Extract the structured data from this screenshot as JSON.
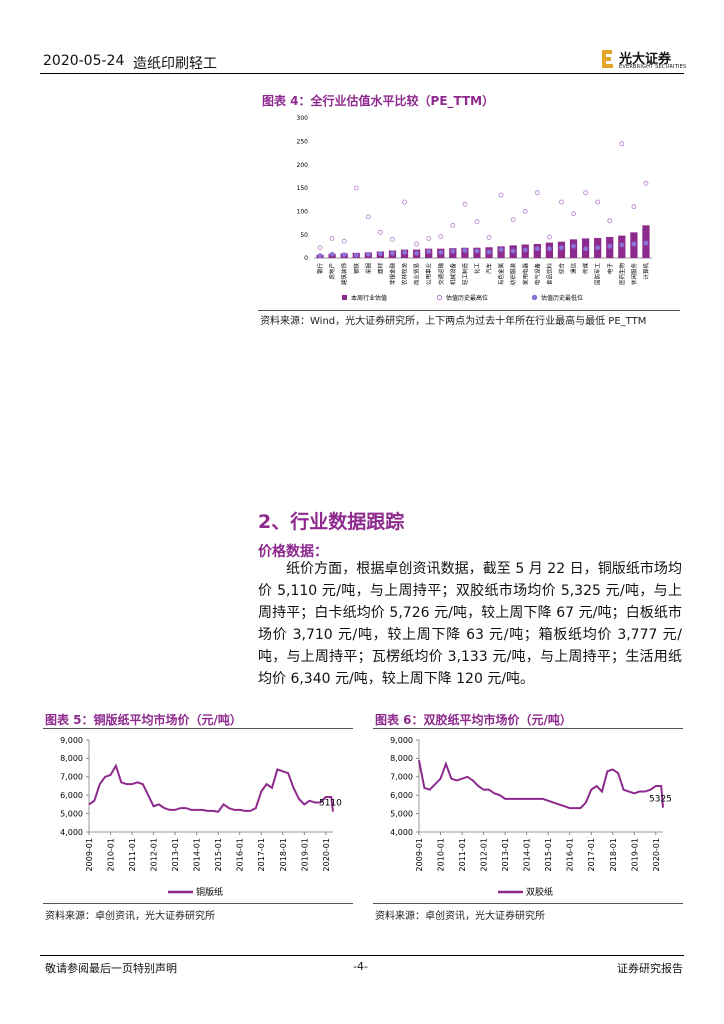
{
  "header": {
    "date": "2020-05-24",
    "section": "造纸印刷轻工",
    "logo_cn": "光大证券",
    "logo_en": "EVERBRIGHT SECURITIES"
  },
  "chart_data": [
    {
      "type": "bar",
      "title": "图表 4：全行业估值水平比较（PE_TTM）",
      "source": "资料来源：Wind，光大证券研究所，上下两点为过去十年所在行业最高与最低 PE_TTM",
      "categories": [
        "银行",
        "房地产",
        "建筑装饰",
        "钢铁",
        "采掘",
        "建材",
        "非银金融",
        "农林牧渔",
        "商业贸易",
        "公用事业",
        "交通运输",
        "机械设备",
        "轻工制造",
        "化工",
        "汽车",
        "有色金属",
        "纺织服装",
        "家用电器",
        "电气设备",
        "食品饮料",
        "综合",
        "通信",
        "传媒",
        "国防军工",
        "电子",
        "医药生物",
        "休闲服务",
        "计算机"
      ],
      "series": [
        {
          "name": "本周行业估值",
          "style": "bar",
          "color": "#8e2a8e",
          "values": [
            7,
            9,
            10,
            11,
            12,
            14,
            16,
            18,
            18,
            20,
            20,
            21,
            22,
            22,
            23,
            25,
            27,
            29,
            30,
            33,
            35,
            40,
            42,
            43,
            45,
            48,
            55,
            70
          ]
        },
        {
          "name": "估值历史最高位",
          "style": "hollow-dot",
          "color": "#b57ccc",
          "values": [
            22,
            42,
            36,
            150,
            88,
            55,
            40,
            120,
            30,
            42,
            46,
            70,
            115,
            78,
            44,
            135,
            82,
            100,
            140,
            45,
            120,
            95,
            140,
            120,
            80,
            245,
            110,
            160
          ]
        },
        {
          "name": "估值历史最低位",
          "style": "dot",
          "color": "#8a73d6",
          "values": [
            5,
            8,
            7,
            6,
            8,
            9,
            10,
            12,
            10,
            14,
            12,
            15,
            16,
            15,
            13,
            18,
            15,
            17,
            20,
            20,
            22,
            25,
            20,
            22,
            25,
            28,
            30,
            32
          ]
        }
      ],
      "ylim": [
        0,
        300
      ],
      "yticks": [
        0,
        50,
        100,
        150,
        200,
        250,
        300
      ]
    },
    {
      "type": "line",
      "title": "图表 5：铜版纸平均市场价（元/吨）",
      "source": "资料来源：卓创资讯，光大证券研究所",
      "x": [
        "2009-01",
        "2009-04",
        "2009-07",
        "2009-10",
        "2010-01",
        "2010-04",
        "2010-07",
        "2010-10",
        "2011-01",
        "2011-04",
        "2011-07",
        "2011-10",
        "2012-01",
        "2012-04",
        "2012-07",
        "2012-10",
        "2013-01",
        "2013-04",
        "2013-07",
        "2013-10",
        "2014-01",
        "2014-04",
        "2014-07",
        "2014-10",
        "2015-01",
        "2015-04",
        "2015-07",
        "2015-10",
        "2016-01",
        "2016-04",
        "2016-07",
        "2016-10",
        "2017-01",
        "2017-04",
        "2017-07",
        "2017-10",
        "2018-01",
        "2018-04",
        "2018-07",
        "2018-10",
        "2019-01",
        "2019-04",
        "2019-07",
        "2019-10",
        "2020-01",
        "2020-04",
        "2020-05"
      ],
      "xticks": [
        "2009-01",
        "2010-01",
        "2011-01",
        "2012-01",
        "2013-01",
        "2014-01",
        "2015-01",
        "2016-01",
        "2017-01",
        "2018-01",
        "2019-01",
        "2020-01"
      ],
      "series": [
        {
          "name": "铜版纸",
          "color": "#8e2a8e",
          "values": [
            5500,
            5700,
            6600,
            7000,
            7100,
            7600,
            6700,
            6600,
            6600,
            6700,
            6600,
            6000,
            5400,
            5500,
            5300,
            5200,
            5200,
            5300,
            5300,
            5200,
            5200,
            5200,
            5150,
            5150,
            5100,
            5500,
            5300,
            5200,
            5200,
            5150,
            5150,
            5300,
            6200,
            6600,
            6400,
            7400,
            7300,
            7200,
            6400,
            5800,
            5500,
            5700,
            5600,
            5600,
            5900,
            5900,
            5110
          ]
        }
      ],
      "ylim": [
        4000,
        9000
      ],
      "yticks": [
        {
          "value": 4000,
          "label": "4,000"
        },
        {
          "value": 5000,
          "label": "5,000"
        },
        {
          "value": 6000,
          "label": "6,000"
        },
        {
          "value": 7000,
          "label": "7,000"
        },
        {
          "value": 8000,
          "label": "8,000"
        },
        {
          "value": 9000,
          "label": "9,000"
        }
      ]
    },
    {
      "type": "line",
      "title": "图表 6：双胶纸平均市场价（元/吨）",
      "source": "资料来源：卓创资讯，光大证券研究所",
      "x": [
        "2009-01",
        "2009-04",
        "2009-07",
        "2009-10",
        "2010-01",
        "2010-04",
        "2010-07",
        "2010-10",
        "2011-01",
        "2011-04",
        "2011-07",
        "2011-10",
        "2012-01",
        "2012-04",
        "2012-07",
        "2012-10",
        "2013-01",
        "2013-04",
        "2013-07",
        "2013-10",
        "2014-01",
        "2014-04",
        "2014-07",
        "2014-10",
        "2015-01",
        "2015-04",
        "2015-07",
        "2015-10",
        "2016-01",
        "2016-04",
        "2016-07",
        "2016-10",
        "2017-01",
        "2017-04",
        "2017-07",
        "2017-10",
        "2018-01",
        "2018-04",
        "2018-07",
        "2018-10",
        "2019-01",
        "2019-04",
        "2019-07",
        "2019-10",
        "2020-01",
        "2020-04",
        "2020-05"
      ],
      "xticks": [
        "2009-01",
        "2010-01",
        "2011-01",
        "2012-01",
        "2013-01",
        "2014-01",
        "2015-01",
        "2016-01",
        "2017-01",
        "2018-01",
        "2019-01",
        "2020-01"
      ],
      "series": [
        {
          "name": "双胶纸",
          "color": "#8e2a8e",
          "values": [
            7900,
            6400,
            6300,
            6600,
            6900,
            7700,
            6900,
            6800,
            6900,
            7000,
            6800,
            6500,
            6300,
            6300,
            6100,
            6000,
            5800,
            5800,
            5800,
            5800,
            5800,
            5800,
            5800,
            5800,
            5700,
            5600,
            5500,
            5400,
            5300,
            5300,
            5300,
            5600,
            6300,
            6500,
            6200,
            7300,
            7400,
            7200,
            6300,
            6200,
            6100,
            6200,
            6200,
            6300,
            6500,
            6500,
            5325
          ]
        }
      ],
      "ylim": [
        4000,
        9000
      ],
      "yticks": [
        {
          "value": 4000,
          "label": "4,000"
        },
        {
          "value": 5000,
          "label": "5,000"
        },
        {
          "value": 6000,
          "label": "6,000"
        },
        {
          "value": 7000,
          "label": "7,000"
        },
        {
          "value": 8000,
          "label": "8,000"
        },
        {
          "value": 9000,
          "label": "9,000"
        }
      ]
    }
  ],
  "section": {
    "heading": "2、行业数据跟踪",
    "subheading": "价格数据：",
    "paragraph": "纸价方面，根据卓创资讯数据，截至 5 月 22 日，铜版纸市场均价 5,110 元/吨，与上周持平；双胶纸市场均价 5,325 元/吨，与上周持平；白卡纸均价 5,726 元/吨，较上周下降 67 元/吨；白板纸市场价 3,710 元/吨，较上周下降 63 元/吨；箱板纸均价 3,777 元/吨，与上周持平；瓦楞纸均价 3,133 元/吨，与上周持平；生活用纸均价 6,340 元/吨，较上周下降 120 元/吨。"
  },
  "footer": {
    "left": "敬请参阅最后一页特别声明",
    "page": "-4-",
    "right": "证券研究报告"
  }
}
